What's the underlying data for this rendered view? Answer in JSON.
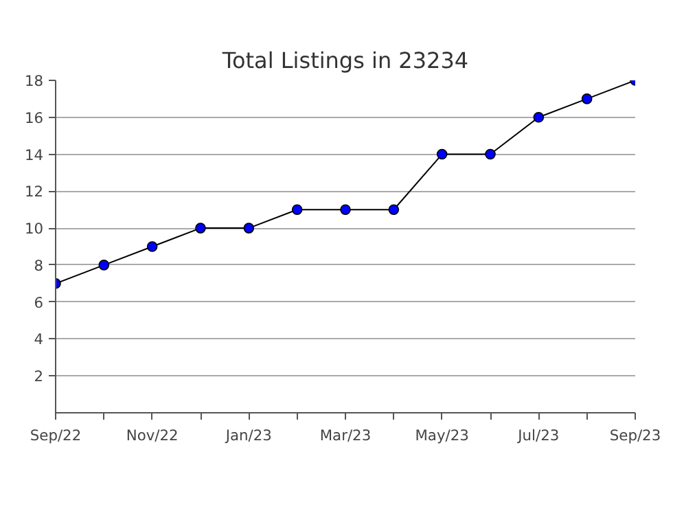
{
  "chart_data": {
    "type": "line",
    "title": "Total Listings in 23234",
    "categories": [
      "Sep/22",
      null,
      "Nov/22",
      null,
      "Jan/23",
      null,
      "Mar/23",
      null,
      "May/23",
      null,
      "Jul/23",
      null,
      "Sep/23"
    ],
    "series": [
      {
        "color": "#0000ff",
        "values": [
          7,
          8,
          9,
          10,
          10,
          11,
          11,
          11,
          14,
          14,
          16,
          17,
          18
        ]
      }
    ],
    "ylim": [
      0,
      18
    ],
    "yticks": [
      2,
      4,
      6,
      8,
      10,
      12,
      14,
      16,
      18
    ],
    "grid": "y",
    "marker": "circle",
    "line_style": "solid"
  }
}
